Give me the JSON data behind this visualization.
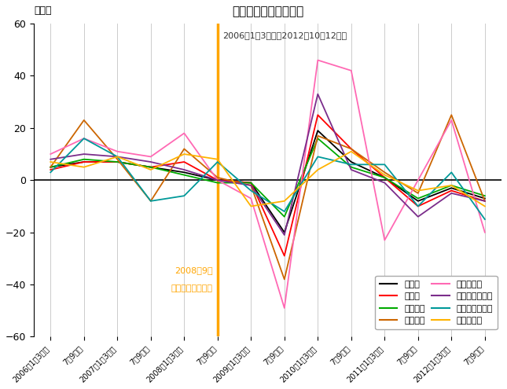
{
  "title": "売上高（前年同期比）",
  "subtitle": "2006年1～3月期～2012年10～12月期",
  "ylabel": "（％）",
  "ylim": [
    -60,
    60
  ],
  "yticks": [
    -60,
    -40,
    -20,
    0,
    20,
    40,
    60
  ],
  "vline_index": 5,
  "vline_color": "#FFA500",
  "vline_label_line1": "2008年9月",
  "vline_label_line2": "リーマンショック",
  "x_labels": [
    "2006年1～3月期",
    "7～9月期",
    "2007年1～3月期",
    "7～9月期",
    "2008年1～3月期",
    "7～9月期",
    "2009年1～3月期",
    "7～9月期",
    "2010年1～3月期",
    "7～9月期",
    "2011年1～3月期",
    "7～9月期",
    "2012年1～3月期",
    "7～9月期"
  ],
  "series": [
    {
      "name": "全産業",
      "color": "#000000",
      "values": [
        5,
        7,
        7,
        5,
        3,
        0,
        -1,
        -20,
        19,
        7,
        1,
        -8,
        -3,
        -7
      ]
    },
    {
      "name": "製造業",
      "color": "#FF0000",
      "values": [
        4,
        7,
        7,
        5,
        7,
        0,
        -1,
        -29,
        25,
        12,
        1,
        -10,
        -4,
        -8
      ]
    },
    {
      "name": "非製造業",
      "color": "#00AA00",
      "values": [
        5,
        8,
        7,
        5,
        2,
        -1,
        -1,
        -14,
        16,
        5,
        1,
        -7,
        -2,
        -6
      ]
    },
    {
      "name": "金属製品",
      "color": "#CC6600",
      "values": [
        5,
        23,
        8,
        -8,
        12,
        1,
        -2,
        -38,
        17,
        12,
        3,
        -5,
        25,
        -8
      ]
    },
    {
      "name": "輸送用機械",
      "color": "#FF69B4",
      "values": [
        10,
        16,
        11,
        9,
        18,
        0,
        -7,
        -49,
        46,
        42,
        -23,
        0,
        23,
        -20
      ]
    },
    {
      "name": "卸売業、小売業",
      "color": "#7B2D8B",
      "values": [
        8,
        10,
        9,
        7,
        4,
        0,
        -2,
        -21,
        33,
        4,
        -1,
        -14,
        -5,
        -8
      ]
    },
    {
      "name": "運輸業、郵便業",
      "color": "#009999",
      "values": [
        3,
        16,
        9,
        -8,
        -6,
        7,
        -4,
        -12,
        9,
        6,
        6,
        -10,
        3,
        -15
      ]
    },
    {
      "name": "サービス業",
      "color": "#FFB300",
      "values": [
        7,
        5,
        9,
        4,
        10,
        8,
        -10,
        -8,
        4,
        11,
        2,
        -4,
        -2,
        -10
      ]
    }
  ],
  "legend_entries_col1": [
    {
      "name": "全産業",
      "color": "#000000"
    },
    {
      "name": "非製造業",
      "color": "#00AA00"
    },
    {
      "name": "輸送用機械",
      "color": "#FF69B4"
    },
    {
      "name": "運輸業、郵便業",
      "color": "#009999"
    }
  ],
  "legend_entries_col2": [
    {
      "name": "製造業",
      "color": "#FF0000"
    },
    {
      "name": "金属製品",
      "color": "#CC6600"
    },
    {
      "name": "卸売業、小売業",
      "color": "#7B2D8B"
    },
    {
      "name": "サービス業",
      "color": "#FFB300"
    }
  ],
  "background_color": "#FFFFFF",
  "grid_color": "#CCCCCC"
}
